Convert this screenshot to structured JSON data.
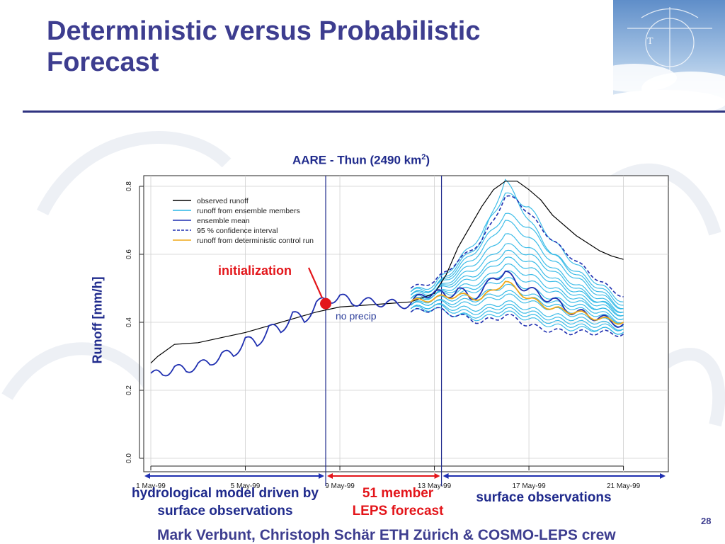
{
  "slide": {
    "title": "Deterministic versus Probabilistic Forecast",
    "credit": "Mark Verbunt, Christoph Schär ETH Zürich & COSMO-LEPS crew",
    "page_number": "28"
  },
  "chart_data": {
    "type": "line",
    "title": "AARE - Thun (2490 km",
    "title_superscript": "2",
    "title_suffix": ")",
    "ylabel": "Runoff  [mm/h]",
    "ylim": [
      0,
      0.8
    ],
    "yticks": [
      0.0,
      0.2,
      0.4,
      0.6,
      0.8
    ],
    "ytick_labels": [
      "0.0",
      "0.2",
      "0.4",
      "0.6",
      "0.8"
    ],
    "x_unit": "days since 1 May-99",
    "xlim": [
      -0.3,
      21.9
    ],
    "xticks": [
      0,
      4,
      8,
      12,
      16,
      20
    ],
    "xtick_labels": [
      "1 May-99",
      "5 May-99",
      "9 May-99",
      "13 May-99",
      "17 May-99",
      "21 May-99"
    ],
    "grid": true,
    "legend_position": "top-left",
    "colors": {
      "observed": "#000000",
      "members": "#29b6e6",
      "mean": "#1f2fb0",
      "confidence": "#1f2fb0",
      "control": "#f0a818",
      "axis": "#222222",
      "vline": "#1f2a8c",
      "init_marker": "#e3151a",
      "forecast_arrow": "#e3151a",
      "obs_arrow": "#1f2fb0"
    },
    "legend": [
      {
        "label": "observed runoff",
        "style": "solid",
        "color": "#000000"
      },
      {
        "label": "runoff from ensemble members",
        "style": "solid",
        "color": "#29b6e6"
      },
      {
        "label": "ensemble mean",
        "style": "solid",
        "color": "#1f2fb0"
      },
      {
        "label": "95 % confidence interval",
        "style": "dashed",
        "color": "#1f2fb0"
      },
      {
        "label": "runoff from deterministic control run",
        "style": "solid",
        "color": "#f0a818"
      }
    ],
    "vertical_lines_x": [
      7.4,
      12.3
    ],
    "series": [
      {
        "name": "observed runoff",
        "x": [
          0.0,
          0.3,
          0.5,
          1.0,
          2.0,
          3.0,
          4.0,
          5.0,
          6.0,
          7.0,
          8.0,
          9.0,
          10.0,
          11.0,
          12.0,
          12.5,
          13.0,
          13.5,
          14.0,
          14.5,
          15.0,
          15.5,
          16.0,
          16.5,
          17.0,
          18.0,
          19.0,
          19.5,
          20.0
        ],
        "y": [
          0.28,
          0.3,
          0.31,
          0.335,
          0.34,
          0.355,
          0.37,
          0.39,
          0.41,
          0.43,
          0.445,
          0.45,
          0.455,
          0.46,
          0.485,
          0.54,
          0.62,
          0.68,
          0.74,
          0.79,
          0.815,
          0.815,
          0.79,
          0.76,
          0.715,
          0.655,
          0.61,
          0.595,
          0.585
        ]
      },
      {
        "name": "ensemble mean",
        "x": [
          0.0,
          0.5,
          1.0,
          1.5,
          2.0,
          2.5,
          3.0,
          3.5,
          4.0,
          4.5,
          5.0,
          5.5,
          6.0,
          6.5,
          7.0,
          7.5,
          8.0,
          8.5,
          9.0,
          9.5,
          10.0,
          10.5,
          11.0,
          11.5,
          12.0,
          12.5,
          13.0,
          13.5,
          14.0,
          14.5,
          15.0,
          15.5,
          16.0,
          16.5,
          17.0,
          17.5,
          18.0,
          18.5,
          19.0,
          19.5,
          20.0
        ],
        "y": [
          0.25,
          0.245,
          0.27,
          0.255,
          0.28,
          0.275,
          0.31,
          0.3,
          0.355,
          0.33,
          0.39,
          0.37,
          0.43,
          0.4,
          0.46,
          0.46,
          0.48,
          0.455,
          0.465,
          0.455,
          0.46,
          0.45,
          0.455,
          0.48,
          0.49,
          0.475,
          0.5,
          0.47,
          0.49,
          0.53,
          0.55,
          0.51,
          0.5,
          0.475,
          0.47,
          0.44,
          0.43,
          0.42,
          0.415,
          0.4,
          0.395
        ]
      },
      {
        "name": "runoff from deterministic control run",
        "x": [
          11.0,
          12.0,
          13.0,
          14.0,
          15.0,
          16.0,
          17.0,
          18.0,
          19.0,
          20.0
        ],
        "y": [
          0.46,
          0.47,
          0.48,
          0.47,
          0.52,
          0.47,
          0.44,
          0.43,
          0.41,
          0.4
        ]
      }
    ],
    "confidence_interval": {
      "name": "95 % confidence interval",
      "x": [
        11.0,
        12.0,
        13.0,
        14.0,
        14.5,
        15.0,
        15.5,
        16.0,
        17.0,
        18.0,
        19.0,
        20.0
      ],
      "upper": [
        0.5,
        0.52,
        0.58,
        0.64,
        0.7,
        0.77,
        0.76,
        0.72,
        0.64,
        0.58,
        0.52,
        0.475
      ],
      "lower": [
        0.43,
        0.44,
        0.42,
        0.4,
        0.41,
        0.42,
        0.41,
        0.39,
        0.375,
        0.37,
        0.37,
        0.365
      ]
    },
    "ensemble_members_x": [
      11.0,
      12.0,
      13.0,
      14.0,
      15.0,
      16.0,
      17.0,
      18.0,
      19.0,
      20.0
    ],
    "ensemble_members": [
      [
        0.49,
        0.51,
        0.58,
        0.66,
        0.78,
        0.74,
        0.64,
        0.57,
        0.51,
        0.46
      ],
      [
        0.49,
        0.5,
        0.57,
        0.64,
        0.82,
        0.7,
        0.6,
        0.55,
        0.5,
        0.45
      ],
      [
        0.48,
        0.5,
        0.56,
        0.63,
        0.72,
        0.68,
        0.6,
        0.54,
        0.49,
        0.44
      ],
      [
        0.48,
        0.5,
        0.55,
        0.61,
        0.7,
        0.65,
        0.58,
        0.53,
        0.48,
        0.44
      ],
      [
        0.48,
        0.49,
        0.54,
        0.59,
        0.66,
        0.62,
        0.56,
        0.51,
        0.47,
        0.43
      ],
      [
        0.47,
        0.49,
        0.53,
        0.57,
        0.63,
        0.6,
        0.55,
        0.5,
        0.46,
        0.43
      ],
      [
        0.47,
        0.49,
        0.52,
        0.55,
        0.61,
        0.58,
        0.53,
        0.49,
        0.46,
        0.42
      ],
      [
        0.47,
        0.48,
        0.51,
        0.54,
        0.59,
        0.56,
        0.52,
        0.48,
        0.45,
        0.42
      ],
      [
        0.46,
        0.48,
        0.5,
        0.52,
        0.57,
        0.54,
        0.5,
        0.47,
        0.44,
        0.41
      ],
      [
        0.46,
        0.48,
        0.49,
        0.51,
        0.55,
        0.52,
        0.49,
        0.46,
        0.44,
        0.41
      ],
      [
        0.46,
        0.47,
        0.48,
        0.5,
        0.53,
        0.5,
        0.47,
        0.45,
        0.43,
        0.4
      ],
      [
        0.45,
        0.47,
        0.47,
        0.48,
        0.51,
        0.48,
        0.46,
        0.44,
        0.42,
        0.4
      ],
      [
        0.45,
        0.46,
        0.46,
        0.47,
        0.49,
        0.47,
        0.45,
        0.43,
        0.41,
        0.39
      ],
      [
        0.45,
        0.46,
        0.45,
        0.46,
        0.48,
        0.46,
        0.44,
        0.42,
        0.41,
        0.39
      ],
      [
        0.44,
        0.45,
        0.44,
        0.44,
        0.46,
        0.44,
        0.42,
        0.41,
        0.4,
        0.38
      ],
      [
        0.44,
        0.45,
        0.43,
        0.43,
        0.45,
        0.43,
        0.41,
        0.4,
        0.39,
        0.38
      ],
      [
        0.44,
        0.44,
        0.42,
        0.42,
        0.44,
        0.42,
        0.4,
        0.39,
        0.38,
        0.37
      ],
      [
        0.43,
        0.44,
        0.42,
        0.41,
        0.43,
        0.41,
        0.39,
        0.38,
        0.38,
        0.37
      ]
    ],
    "annotations": {
      "initialization": "initialization",
      "no_precip": "no precip"
    },
    "init_point": {
      "x": 7.4,
      "y": 0.455
    },
    "periods": {
      "hindcast": "hydrological model driven by surface observations",
      "forecast_line1": "51 member",
      "forecast_line2": "LEPS forecast",
      "observations": "surface observations"
    }
  }
}
